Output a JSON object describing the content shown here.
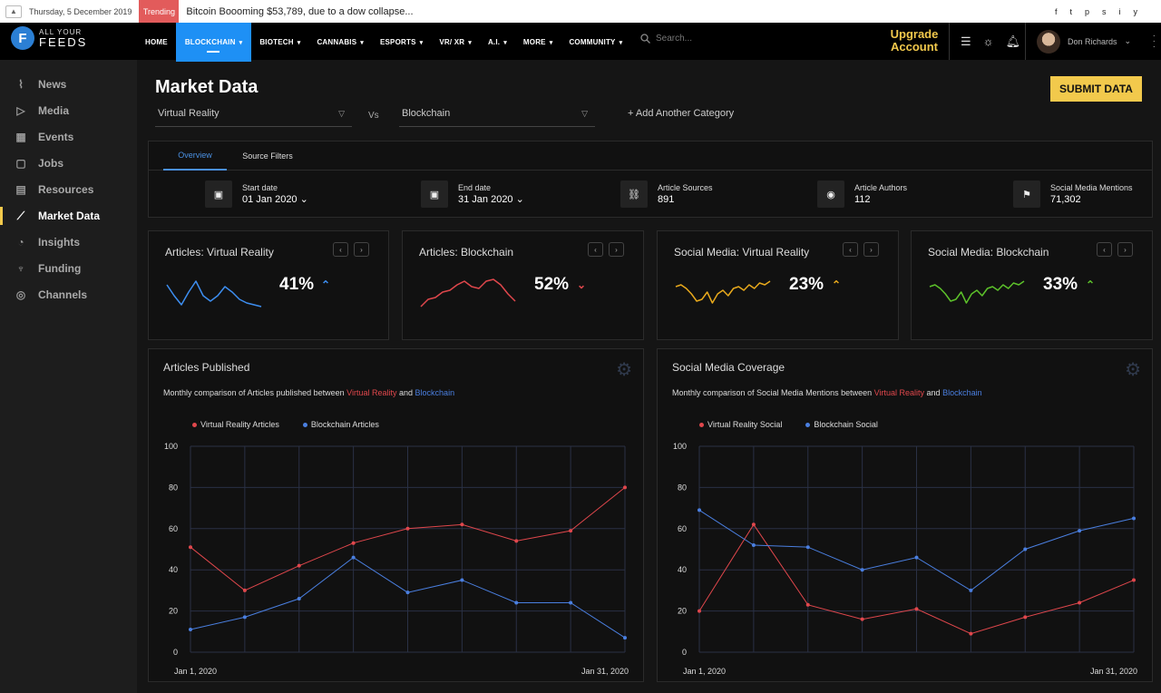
{
  "topbar": {
    "date": "Thursday, 5 December 2019",
    "trending_label": "Trending",
    "headline": "Bitcoin Boooming $53,789, due to a dow collapse...",
    "socials": [
      "f",
      "t",
      "p",
      "s",
      "i",
      "y"
    ]
  },
  "brand": {
    "line1": "ALL YOUR",
    "line2": "FEEDS"
  },
  "nav": {
    "items": [
      {
        "label": "HOME",
        "caret": ""
      },
      {
        "label": "BLOCKCHAIN",
        "caret": "▾"
      },
      {
        "label": "BIOTECH",
        "caret": "▾"
      },
      {
        "label": "CANNABIS",
        "caret": "▾"
      },
      {
        "label": "ESPORTS",
        "caret": "▾"
      },
      {
        "label": "VR/ XR",
        "caret": "▾"
      },
      {
        "label": "A.I.",
        "caret": "▾"
      },
      {
        "label": "MORE",
        "caret": "▾"
      },
      {
        "label": "COMMUNITY",
        "caret": "▾"
      }
    ],
    "active_index": 1,
    "search_placeholder": "Search...",
    "upgrade_label": "Upgrade Account",
    "user_name": "Don Richards"
  },
  "sidebar": {
    "items": [
      "News",
      "Media",
      "Events",
      "Jobs",
      "Resources",
      "Market Data",
      "Insights",
      "Funding",
      "Channels"
    ],
    "icons": [
      "rss-icon",
      "play-icon",
      "calendar-icon",
      "briefcase-icon",
      "document-icon",
      "trend-icon",
      "chart-icon",
      "trophy-icon",
      "channel-icon"
    ],
    "active_index": 5
  },
  "page": {
    "title": "Market Data",
    "submit_label": "SUBMIT DATA",
    "category_a": "Virtual Reality",
    "vs_label": "Vs",
    "category_b": "Blockchain",
    "add_category": "+ Add Another Category"
  },
  "filters": {
    "tabs": [
      "Overview",
      "Source Filters"
    ],
    "start_label": "Start date",
    "start_value": "01 Jan 2020",
    "end_label": "End date",
    "end_value": "31 Jan 2020",
    "sources_label": "Article Sources",
    "sources_value": "891",
    "authors_label": "Article Authors",
    "authors_value": "112",
    "mentions_label": "Social Media Mentions",
    "mentions_value": "71,302"
  },
  "cards": [
    {
      "title": "Articles: Virtual Reality",
      "percent": "41%",
      "trend": "up",
      "color": "#3d8ef0",
      "spark": [
        30,
        18,
        8,
        22,
        34,
        18,
        12,
        18,
        28,
        22,
        14,
        10,
        8,
        6
      ]
    },
    {
      "title": "Articles: Blockchain",
      "percent": "52%",
      "trend": "down",
      "color": "#e0474c",
      "spark": [
        6,
        14,
        16,
        22,
        24,
        30,
        34,
        28,
        26,
        34,
        36,
        30,
        20,
        12
      ]
    },
    {
      "title": "Social Media: Virtual Reality",
      "percent": "23%",
      "trend": "up",
      "color": "#e8a91c",
      "spark": [
        28,
        30,
        26,
        20,
        12,
        14,
        22,
        10,
        20,
        24,
        18,
        26,
        28,
        24,
        30,
        26,
        32,
        30,
        34
      ]
    },
    {
      "title": "Social Media: Blockchain",
      "percent": "33%",
      "trend": "up",
      "color": "#5cc12a",
      "spark": [
        28,
        30,
        26,
        20,
        12,
        14,
        22,
        10,
        20,
        24,
        18,
        26,
        28,
        24,
        30,
        26,
        32,
        30,
        34
      ]
    }
  ],
  "chart_data": [
    {
      "type": "line",
      "title": "Articles Published",
      "subtitle_prefix": "Monthly comparison of Articles published between",
      "subtitle_a": "Virtual Reality",
      "subtitle_and": "and",
      "subtitle_b": "Blockchain",
      "ylim": [
        0,
        100
      ],
      "yticks": [
        100,
        80,
        60,
        40,
        20,
        0
      ],
      "x_start_label": "Jan 1, 2020",
      "x_end_label": "Jan 31, 2020",
      "series": [
        {
          "name": "Virtual Reality Articles",
          "color": "#e0474c",
          "values": [
            51,
            30,
            42,
            53,
            60,
            62,
            54,
            59,
            80
          ]
        },
        {
          "name": "Blockchain Articles",
          "color": "#4a7fe0",
          "values": [
            11,
            17,
            26,
            46,
            29,
            35,
            24,
            24,
            7
          ]
        }
      ]
    },
    {
      "type": "line",
      "title": "Social Media Coverage",
      "subtitle_prefix": "Monthly comparison of Social Media Mentions between",
      "subtitle_a": "Virtual Reality",
      "subtitle_and": "and",
      "subtitle_b": "Blockchain",
      "ylim": [
        0,
        100
      ],
      "yticks": [
        100,
        80,
        60,
        40,
        20,
        0
      ],
      "x_start_label": "Jan 1, 2020",
      "x_end_label": "Jan 31, 2020",
      "series": [
        {
          "name": "Virtual Reality Social",
          "color": "#e0474c",
          "values": [
            20,
            62,
            23,
            16,
            21,
            9,
            17,
            24,
            35
          ]
        },
        {
          "name": "Blockchain Social",
          "color": "#4a7fe0",
          "values": [
            69,
            52,
            51,
            40,
            46,
            30,
            50,
            59,
            65
          ]
        }
      ]
    }
  ]
}
